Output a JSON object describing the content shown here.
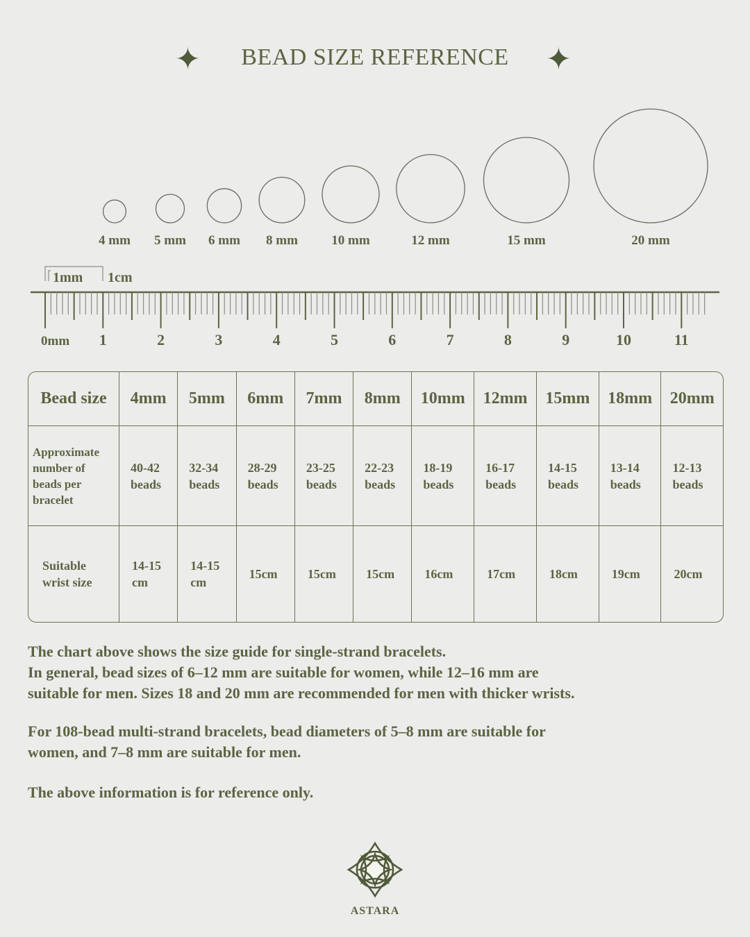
{
  "title": "BEAD SIZE REFERENCE",
  "beads": [
    {
      "mm": 4,
      "label": "4 mm"
    },
    {
      "mm": 5,
      "label": "5 mm"
    },
    {
      "mm": 6,
      "label": "6 mm"
    },
    {
      "mm": 8,
      "label": "8 mm"
    },
    {
      "mm": 10,
      "label": "10 mm"
    },
    {
      "mm": 12,
      "label": "12 mm"
    },
    {
      "mm": 15,
      "label": "15 mm"
    },
    {
      "mm": 20,
      "label": "20 mm"
    }
  ],
  "ruler": {
    "mm_legend": "1mm",
    "cm_legend": "1cm",
    "labels": [
      "0mm",
      "1",
      "2",
      "3",
      "4",
      "5",
      "6",
      "7",
      "8",
      "9",
      "10",
      "11"
    ]
  },
  "table": {
    "header": [
      "Bead size",
      "4mm",
      "5mm",
      "6mm",
      "7mm",
      "8mm",
      "10mm",
      "12mm",
      "15mm",
      "18mm",
      "20mm"
    ],
    "rows": [
      {
        "label": [
          "Approximate",
          "number of",
          "beads per",
          "bracelet"
        ],
        "cells": [
          [
            "40-42",
            "beads"
          ],
          [
            "32-34",
            "beads"
          ],
          [
            "28-29",
            "beads"
          ],
          [
            "23-25",
            "beads"
          ],
          [
            "22-23",
            "beads"
          ],
          [
            "18-19",
            "beads"
          ],
          [
            "16-17",
            "beads"
          ],
          [
            "14-15",
            "beads"
          ],
          [
            "13-14",
            "beads"
          ],
          [
            "12-13",
            "beads"
          ]
        ]
      },
      {
        "label": [
          "Suitable",
          "wrist size"
        ],
        "cells": [
          [
            "14-15",
            "cm"
          ],
          [
            "14-15",
            "cm"
          ],
          [
            "15cm"
          ],
          [
            "15cm"
          ],
          [
            "15cm"
          ],
          [
            "16cm"
          ],
          [
            "17cm"
          ],
          [
            "18cm"
          ],
          [
            "19cm"
          ],
          [
            "20cm"
          ]
        ]
      }
    ]
  },
  "paragraphs": [
    [
      "The chart above shows the size guide for single-strand bracelets.",
      "In general, bead sizes of 6–12 mm are suitable for women, while 12–16 mm are",
      "suitable for men. Sizes 18 and 20 mm are recommended for men with thicker wrists."
    ],
    [
      "For 108-bead multi-strand bracelets, bead diameters of 5–8 mm are suitable for",
      "women, and 7–8 mm are suitable for men."
    ],
    [
      "The above information is for reference only."
    ]
  ],
  "brand": "ASTARA",
  "colors": {
    "text": "#5b6442",
    "background": "#ececeb"
  }
}
